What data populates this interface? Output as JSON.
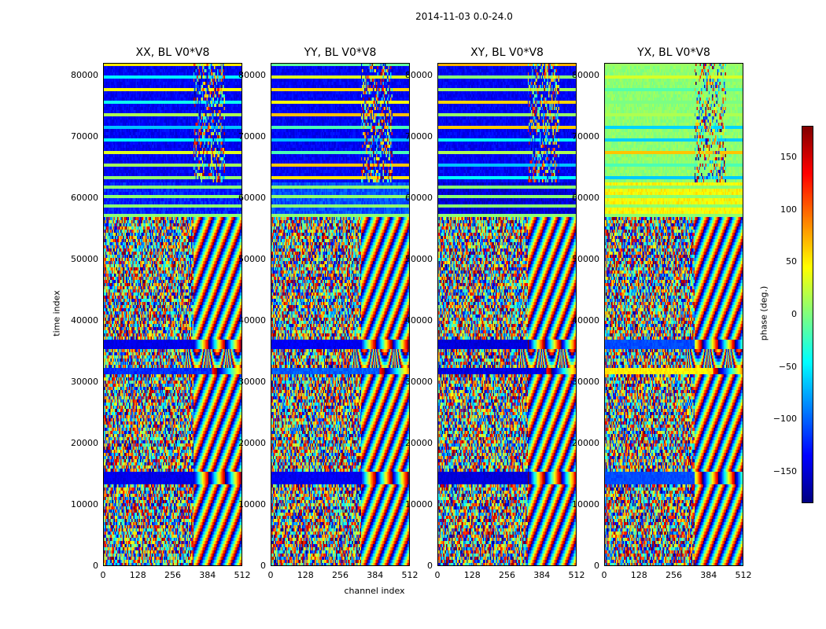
{
  "chart_data": {
    "type": "heatmap",
    "suptitle": "2014-11-03 0.0-24.0",
    "panels": [
      {
        "title": "XX, BL V0*V8",
        "phase_offset": 0
      },
      {
        "title": "YY, BL V0*V8",
        "phase_offset": 18
      },
      {
        "title": "XY, BL V0*V8",
        "phase_offset": -25
      },
      {
        "title": "YX, BL V0*V8",
        "phase_offset": 170
      }
    ],
    "xlabel": "channel index",
    "ylabel": "time index",
    "xlim": [
      0,
      512
    ],
    "ylim": [
      0,
      82000
    ],
    "xticks": [
      "0",
      "128",
      "256",
      "384",
      "512"
    ],
    "xtick_values": [
      0,
      128,
      256,
      384,
      512
    ],
    "yticks": [
      "0",
      "10000",
      "20000",
      "30000",
      "40000",
      "50000",
      "60000",
      "70000",
      "80000"
    ],
    "ytick_values": [
      0,
      10000,
      20000,
      30000,
      40000,
      50000,
      60000,
      70000,
      80000
    ],
    "colorbar": {
      "label": "phase (deg.)",
      "range": [
        -180,
        180
      ],
      "ticks": [
        "150",
        "100",
        "50",
        "0",
        "−50",
        "−100",
        "−150"
      ],
      "tick_values": [
        150,
        100,
        50,
        0,
        -50,
        -100,
        -150
      ],
      "colormap": "jet"
    },
    "regions": [
      {
        "t0": 0,
        "t1": 13500,
        "kind": "noise"
      },
      {
        "t0": 13500,
        "t1": 15500,
        "kind": "flat"
      },
      {
        "t0": 15500,
        "t1": 31500,
        "kind": "noise"
      },
      {
        "t0": 31500,
        "t1": 32500,
        "kind": "band"
      },
      {
        "t0": 32500,
        "t1": 35500,
        "kind": "fringe"
      },
      {
        "t0": 35500,
        "t1": 37000,
        "kind": "flat"
      },
      {
        "t0": 37000,
        "t1": 57000,
        "kind": "noise"
      },
      {
        "t0": 57000,
        "t1": 62500,
        "kind": "stripes"
      },
      {
        "t0": 62500,
        "t1": 82000,
        "kind": "calm"
      }
    ]
  }
}
